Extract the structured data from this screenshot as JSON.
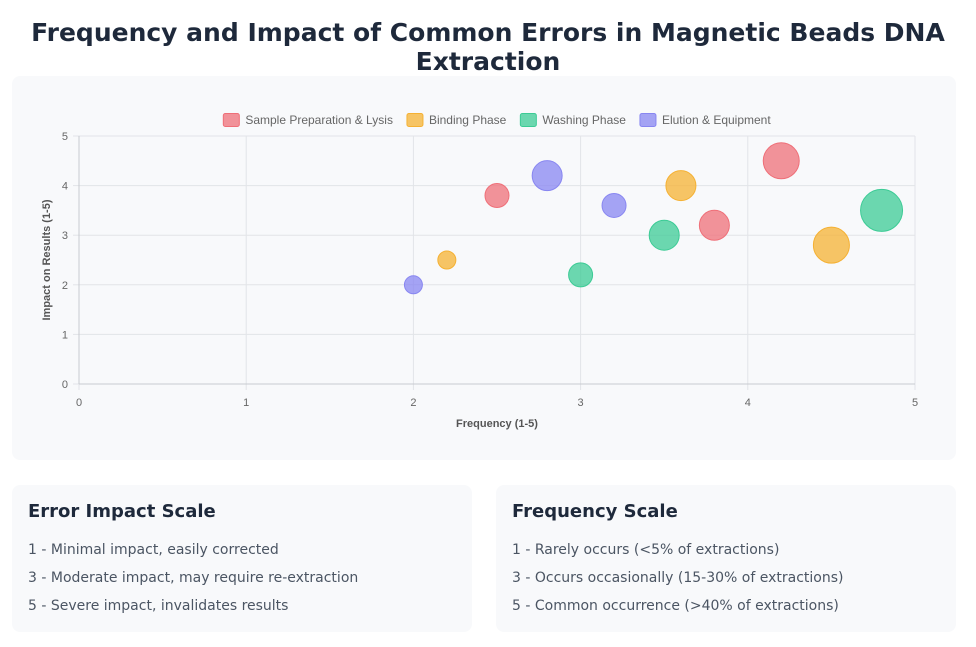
{
  "title": "Frequency and Impact of Common Errors in Magnetic Beads DNA Extraction",
  "chart_data": {
    "type": "scatter",
    "variant": "bubble",
    "xlabel": "Frequency (1-5)",
    "ylabel": "Impact on Results (1-5)",
    "xlim": [
      0,
      5
    ],
    "ylim": [
      0,
      5
    ],
    "x_ticks": [
      "0",
      "1",
      "2",
      "3",
      "4",
      "5"
    ],
    "y_ticks": [
      "0",
      "1",
      "2",
      "3",
      "4",
      "5"
    ],
    "grid": true,
    "legend_position": "top-center",
    "series": [
      {
        "name": "Sample Preparation & Lysis",
        "color": "#ef6f78",
        "points": [
          {
            "x": 2.5,
            "y": 3.8,
            "r": 3
          },
          {
            "x": 3.8,
            "y": 3.2,
            "r": 4
          },
          {
            "x": 4.2,
            "y": 4.5,
            "r": 5
          }
        ]
      },
      {
        "name": "Binding Phase",
        "color": "#f5b133",
        "points": [
          {
            "x": 2.2,
            "y": 2.5,
            "r": 2
          },
          {
            "x": 3.6,
            "y": 4.0,
            "r": 4
          },
          {
            "x": 4.5,
            "y": 2.8,
            "r": 5
          }
        ]
      },
      {
        "name": "Washing Phase",
        "color": "#3ccb95",
        "points": [
          {
            "x": 3.0,
            "y": 2.2,
            "r": 3
          },
          {
            "x": 3.5,
            "y": 3.0,
            "r": 4
          },
          {
            "x": 4.8,
            "y": 3.5,
            "r": 6
          }
        ]
      },
      {
        "name": "Elution & Equipment",
        "color": "#8886f1",
        "points": [
          {
            "x": 2.0,
            "y": 2.0,
            "r": 2
          },
          {
            "x": 2.8,
            "y": 4.2,
            "r": 4
          },
          {
            "x": 3.2,
            "y": 3.6,
            "r": 3
          }
        ]
      }
    ]
  },
  "impact_scale": {
    "title": "Error Impact Scale",
    "items": [
      "1 - Minimal impact, easily corrected",
      "3 - Moderate impact, may require re-extraction",
      "5 - Severe impact, invalidates results"
    ]
  },
  "frequency_scale": {
    "title": "Frequency Scale",
    "items": [
      "1 - Rarely occurs (<5% of extractions)",
      "3 - Occurs occasionally (15-30% of extractions)",
      "5 - Common occurrence (>40% of extractions)"
    ]
  }
}
